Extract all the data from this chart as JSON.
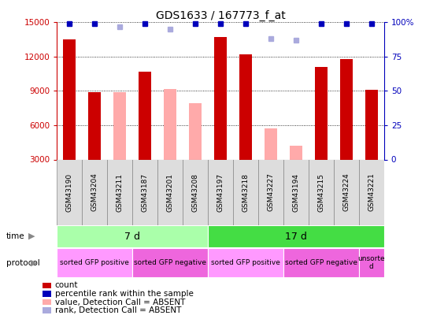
{
  "title": "GDS1633 / 167773_f_at",
  "samples": [
    "GSM43190",
    "GSM43204",
    "GSM43211",
    "GSM43187",
    "GSM43201",
    "GSM43208",
    "GSM43197",
    "GSM43218",
    "GSM43227",
    "GSM43194",
    "GSM43215",
    "GSM43224",
    "GSM43221"
  ],
  "count_values": [
    13500,
    8900,
    null,
    10700,
    null,
    null,
    13700,
    12200,
    null,
    null,
    11100,
    11800,
    9100
  ],
  "absent_values": [
    null,
    null,
    8900,
    null,
    9200,
    7900,
    null,
    null,
    5750,
    4200,
    null,
    null,
    null
  ],
  "percentile_dark": [
    99,
    99,
    null,
    99,
    null,
    99,
    99,
    99,
    null,
    null,
    99,
    99,
    99
  ],
  "percentile_light": [
    null,
    null,
    97,
    null,
    95,
    null,
    null,
    null,
    88,
    87,
    null,
    null,
    null
  ],
  "ylim": [
    3000,
    15000
  ],
  "yticks": [
    3000,
    6000,
    9000,
    12000,
    15000
  ],
  "right_ylim": [
    0,
    100
  ],
  "right_yticks": [
    0,
    25,
    50,
    75,
    100
  ],
  "time_groups": [
    {
      "label": "7 d",
      "start": 0,
      "end": 6,
      "color": "#AAFFAA"
    },
    {
      "label": "17 d",
      "start": 6,
      "end": 13,
      "color": "#44DD44"
    }
  ],
  "protocol_groups": [
    {
      "label": "sorted GFP positive",
      "start": 0,
      "end": 3,
      "color": "#FF99FF"
    },
    {
      "label": "sorted GFP negative",
      "start": 3,
      "end": 6,
      "color": "#EE66DD"
    },
    {
      "label": "sorted GFP positive",
      "start": 6,
      "end": 9,
      "color": "#FF99FF"
    },
    {
      "label": "sorted GFP negative",
      "start": 9,
      "end": 12,
      "color": "#EE66DD"
    },
    {
      "label": "unsorte\nd",
      "start": 12,
      "end": 13,
      "color": "#EE66DD"
    }
  ],
  "bar_color_red": "#CC0000",
  "bar_color_pink": "#FFAAAA",
  "dot_color_dark_blue": "#0000BB",
  "dot_color_light_blue": "#AAAADD",
  "legend_items": [
    {
      "label": "count",
      "color": "#CC0000"
    },
    {
      "label": "percentile rank within the sample",
      "color": "#0000BB"
    },
    {
      "label": "value, Detection Call = ABSENT",
      "color": "#FFAAAA"
    },
    {
      "label": "rank, Detection Call = ABSENT",
      "color": "#AAAADD"
    }
  ],
  "background_color": "#FFFFFF",
  "grid_color": "#000000",
  "tick_label_color_left": "#CC0000",
  "tick_label_color_right": "#0000BB",
  "bar_width": 0.5,
  "sample_box_color": "#DDDDDD",
  "sample_box_edge": "#888888"
}
